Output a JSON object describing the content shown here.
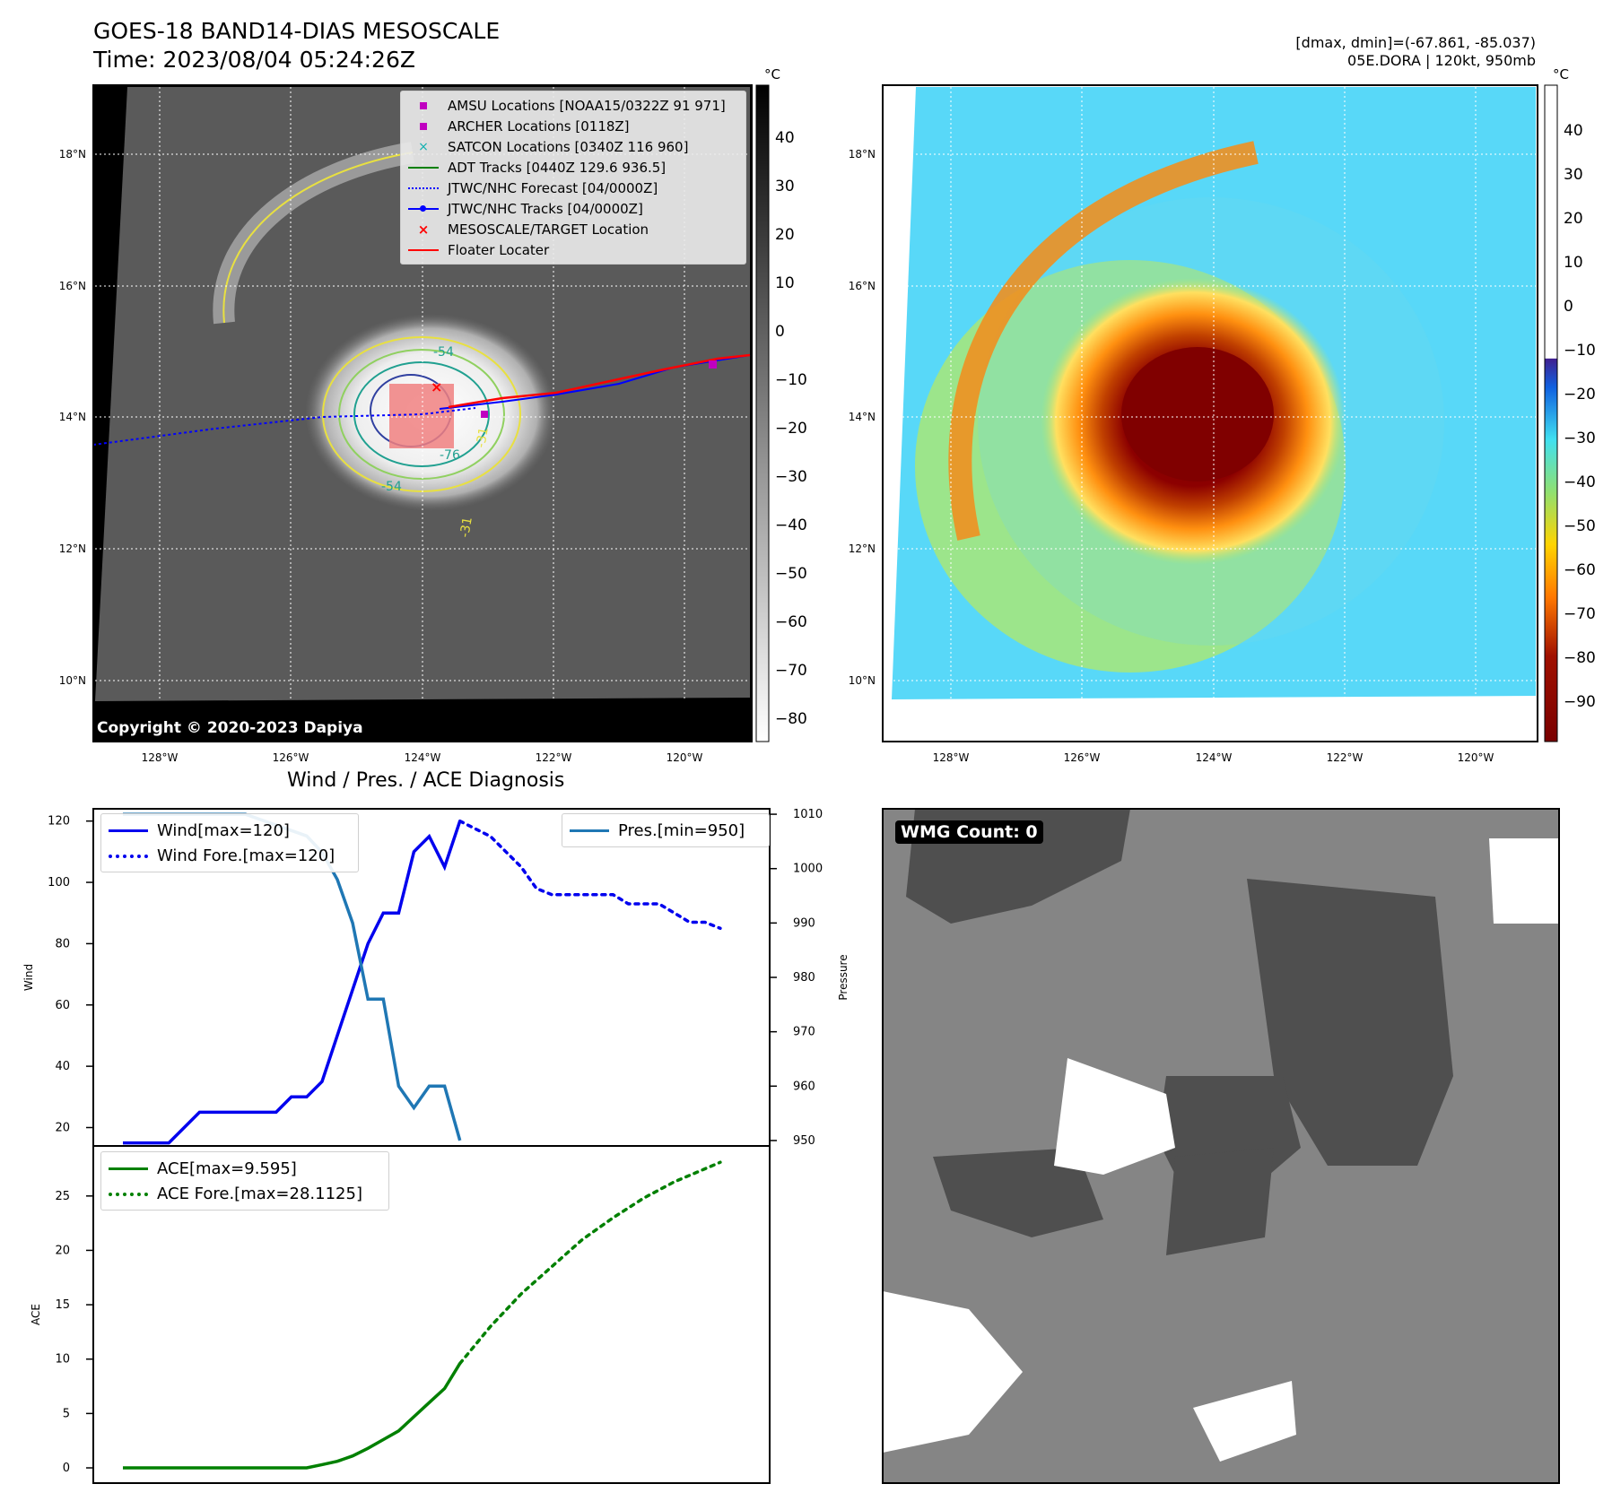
{
  "header": {
    "title": "GOES-18 BAND14-DIAS MESOSCALE",
    "time": "Time: 2023/08/04 05:24:26Z",
    "range_text": "[dmax, dmin]=(-67.861, -85.037)",
    "storm_text": "05E.DORA | 120kt, 950mb"
  },
  "map_panel_left": {
    "lon_ticks": [
      "128°W",
      "126°W",
      "124°W",
      "122°W",
      "120°W"
    ],
    "lat_ticks": [
      "18°N",
      "16°N",
      "14°N",
      "12°N",
      "10°N"
    ],
    "colorbar_unit": "°C",
    "colorbar_ticks": [
      "40",
      "30",
      "20",
      "10",
      "0",
      "−10",
      "−20",
      "−30",
      "−40",
      "−50",
      "−60",
      "−70",
      "−80"
    ],
    "copyright": "Copyright © 2020-2023 Dapiya",
    "contour_labels": [
      "-54",
      "-31",
      "-76",
      "-31",
      "-54"
    ],
    "legend": [
      {
        "label": "AMSU Locations [NOAA15/0322Z 91 971]",
        "symbol": "square",
        "color": "#c000c0"
      },
      {
        "label": "ARCHER Locations [0118Z]",
        "symbol": "square",
        "color": "#c000c0"
      },
      {
        "label": "SATCON Locations [0340Z 116 960]",
        "symbol": "x",
        "color": "#10b0b0"
      },
      {
        "label": "ADT Tracks [0440Z 129.6 936.5]",
        "symbol": "line",
        "color": "#008000"
      },
      {
        "label": "JTWC/NHC Forecast [04/0000Z]",
        "symbol": "dotted",
        "color": "#0000ff"
      },
      {
        "label": "JTWC/NHC Tracks [04/0000Z]",
        "symbol": "line-dot",
        "color": "#0000ff"
      },
      {
        "label": "MESOSCALE/TARGET Location",
        "symbol": "x",
        "color": "#ff0000"
      },
      {
        "label": "Floater Locater",
        "symbol": "line",
        "color": "#ff0000"
      }
    ]
  },
  "map_panel_right": {
    "lon_ticks": [
      "128°W",
      "126°W",
      "124°W",
      "122°W",
      "120°W"
    ],
    "lat_ticks": [
      "18°N",
      "16°N",
      "14°N",
      "12°N",
      "10°N"
    ],
    "colorbar_unit": "°C",
    "colorbar_ticks": [
      "40",
      "30",
      "20",
      "10",
      "0",
      "−10",
      "−20",
      "−30",
      "−40",
      "−50",
      "−60",
      "−70",
      "−80",
      "−90"
    ]
  },
  "wmg_panel": {
    "label": "WMG Count: 0"
  },
  "chart_data": [
    {
      "type": "line",
      "title": "Wind / Pres. / ACE Diagnosis",
      "ylabel": "Wind",
      "y2label": "Pressure",
      "ylim": [
        14,
        124
      ],
      "y2lim": [
        949,
        1011
      ],
      "yticks": [
        "20",
        "40",
        "60",
        "80",
        "100",
        "120"
      ],
      "y2ticks": [
        "950",
        "960",
        "970",
        "980",
        "990",
        "1000",
        "1010"
      ],
      "x_index_range": [
        0,
        40
      ],
      "series": [
        {
          "name": "Wind[max=120]",
          "axis": "left",
          "style": "solid",
          "color": "#0000ee",
          "x": [
            0,
            1,
            2,
            3,
            4,
            5,
            6,
            7,
            8,
            9,
            10,
            11,
            12,
            13,
            14,
            15,
            16,
            17,
            18,
            19,
            20,
            21,
            22
          ],
          "values": [
            15,
            15,
            15,
            15,
            20,
            25,
            25,
            25,
            25,
            25,
            25,
            30,
            30,
            35,
            50,
            65,
            80,
            90,
            90,
            110,
            115,
            105,
            120
          ]
        },
        {
          "name": "Wind Fore.[max=120]",
          "axis": "left",
          "style": "dotted",
          "color": "#0000ee",
          "x": [
            22,
            24,
            26,
            27,
            28,
            29,
            30,
            31,
            32,
            33,
            34,
            35,
            36,
            37,
            38,
            39
          ],
          "values": [
            120,
            115,
            105,
            98,
            96,
            96,
            96,
            96,
            96,
            93,
            93,
            93,
            90,
            87,
            87,
            85
          ]
        },
        {
          "name": "Pres.[min=950]",
          "axis": "right",
          "style": "solid",
          "color": "#1f77b4",
          "x": [
            0,
            4,
            8,
            10,
            12,
            13,
            14,
            15,
            16,
            17,
            18,
            19,
            20,
            21,
            22
          ],
          "values": [
            1010,
            1010,
            1010,
            1008,
            1006,
            1003,
            998,
            990,
            976,
            976,
            960,
            956,
            960,
            960,
            950
          ]
        }
      ]
    },
    {
      "type": "line",
      "ylabel": "ACE",
      "ylim": [
        -1.4,
        29.6
      ],
      "yticks": [
        "0",
        "5",
        "10",
        "15",
        "20",
        "25"
      ],
      "series": [
        {
          "name": "ACE[max=9.595]",
          "style": "solid",
          "color": "#008000",
          "x": [
            0,
            4,
            8,
            10,
            11,
            12,
            13,
            14,
            15,
            16,
            17,
            18,
            19,
            20,
            21,
            22
          ],
          "values": [
            0,
            0,
            0,
            0,
            0,
            0,
            0.3,
            0.6,
            1.1,
            1.8,
            2.6,
            3.4,
            4.7,
            6.0,
            7.3,
            9.6
          ]
        },
        {
          "name": "ACE Fore.[max=28.1125]",
          "style": "dotted",
          "color": "#008000",
          "x": [
            22,
            24,
            26,
            28,
            30,
            32,
            34,
            36,
            38,
            39
          ],
          "values": [
            9.6,
            13.0,
            16.0,
            18.5,
            21.0,
            23.0,
            24.8,
            26.3,
            27.5,
            28.1
          ]
        }
      ]
    }
  ]
}
